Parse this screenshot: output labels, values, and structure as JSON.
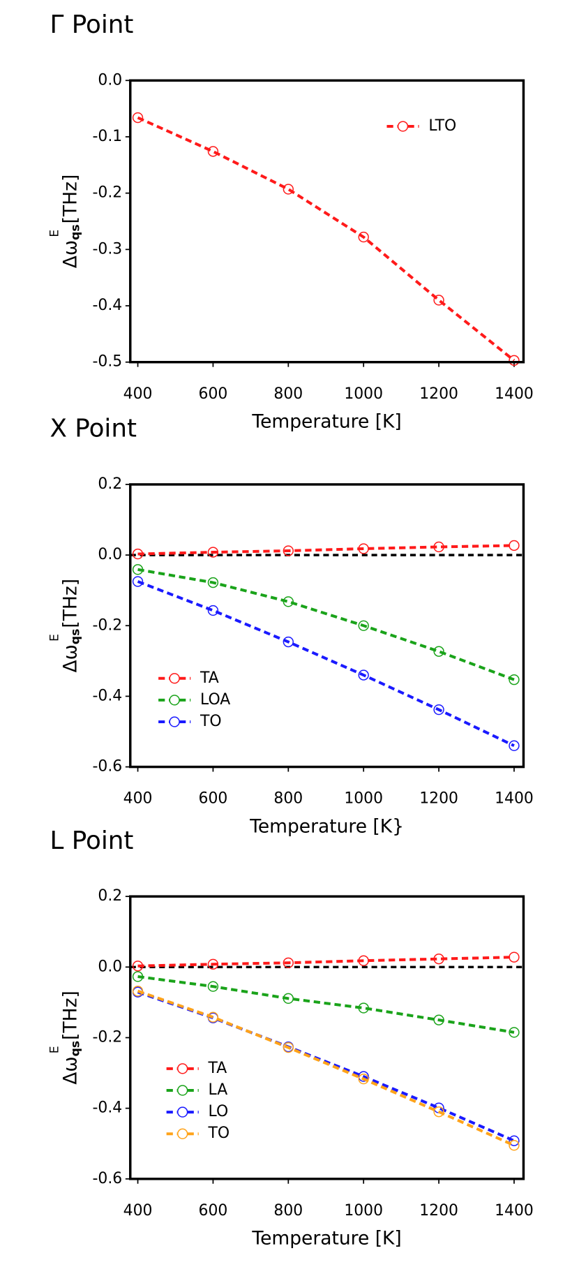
{
  "chart_data": [
    {
      "type": "line",
      "title": "Γ Point",
      "xlabel": "Temperature [K]",
      "ylabel": [
        "Δω",
        "qs",
        "E",
        " [THz]"
      ],
      "x": [
        400,
        600,
        800,
        1000,
        1200,
        1400
      ],
      "series": [
        {
          "name": "LTO",
          "color": "#ff1a1a",
          "values": [
            -0.066,
            -0.126,
            -0.193,
            -0.278,
            -0.39,
            -0.497
          ]
        }
      ],
      "xlim": [
        380,
        1425
      ],
      "xticks": [
        400,
        600,
        800,
        1000,
        1200,
        1400
      ],
      "ylim": [
        -0.5,
        0
      ],
      "yticks": [
        {
          "value": 0,
          "label": "0.0"
        },
        -0.1,
        -0.2,
        -0.3,
        -0.4,
        -0.5
      ],
      "legend": "upper right",
      "zero_line": false
    },
    {
      "type": "line",
      "title": "X Point",
      "xlabel": "Temperature [K}",
      "ylabel": [
        "Δω",
        "qs",
        "E",
        " [THz]"
      ],
      "x": [
        400,
        600,
        800,
        1000,
        1200,
        1400
      ],
      "series": [
        {
          "name": "TA",
          "color": "#ff1a1a",
          "values": [
            0.003,
            0.008,
            0.012,
            0.018,
            0.023,
            0.027
          ]
        },
        {
          "name": "LOA",
          "color": "#1aa31a",
          "values": [
            -0.041,
            -0.078,
            -0.132,
            -0.2,
            -0.273,
            -0.353
          ]
        },
        {
          "name": "TO",
          "color": "#1a1aff",
          "values": [
            -0.075,
            -0.157,
            -0.246,
            -0.34,
            -0.438,
            -0.54
          ]
        }
      ],
      "xlim": [
        380,
        1425
      ],
      "xticks": [
        400,
        600,
        800,
        1000,
        1200,
        1400
      ],
      "ylim": [
        -0.6,
        0.2
      ],
      "yticks": [
        0.2,
        {
          "value": 0,
          "label": "0.0"
        },
        -0.2,
        -0.4,
        -0.6
      ],
      "legend": "lower left",
      "zero_line": true
    },
    {
      "type": "line",
      "title": "L Point",
      "xlabel": "Temperature [K]",
      "ylabel": [
        "Δω",
        "qs",
        "E",
        " [THz]"
      ],
      "x": [
        400,
        600,
        800,
        1000,
        1200,
        1400
      ],
      "series": [
        {
          "name": "TA",
          "color": "#ff1a1a",
          "values": [
            0.003,
            0.008,
            0.012,
            0.018,
            0.023,
            0.028
          ]
        },
        {
          "name": "LA",
          "color": "#1aa31a",
          "values": [
            -0.027,
            -0.055,
            -0.089,
            -0.116,
            -0.15,
            -0.185
          ]
        },
        {
          "name": "LO",
          "color": "#1a1aff",
          "values": [
            -0.071,
            -0.144,
            -0.226,
            -0.31,
            -0.399,
            -0.492
          ]
        },
        {
          "name": "TO",
          "color": "#ffa31a",
          "values": [
            -0.068,
            -0.142,
            -0.228,
            -0.317,
            -0.41,
            -0.505
          ]
        }
      ],
      "xlim": [
        380,
        1425
      ],
      "xticks": [
        400,
        600,
        800,
        1000,
        1200,
        1400
      ],
      "ylim": [
        -0.6,
        0.2
      ],
      "yticks": [
        0.2,
        {
          "value": 0,
          "label": "0.0"
        },
        -0.2,
        -0.4,
        -0.6
      ],
      "legend": "lower left",
      "zero_line": true
    }
  ]
}
